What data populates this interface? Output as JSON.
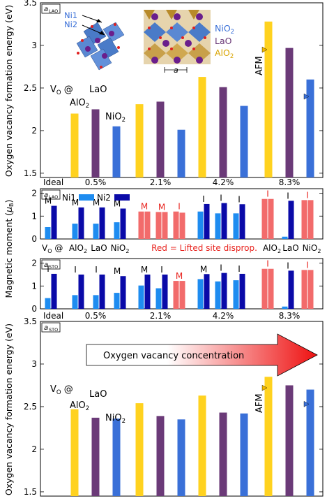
{
  "colors": {
    "AlO2": "#FFD21F",
    "LaO": "#6B3A78",
    "NiO2": "#3A70D8",
    "Ni1": "#1E8CF0",
    "Ni2": "#0A0AA8",
    "red": "#F26B6B",
    "red_text": "#E8231E",
    "AFM_marker": "#F2B800",
    "AFM_marker_ni": "#3A70D8"
  },
  "inset": {
    "ni1": "Ni1",
    "ni2": "Ni2",
    "nio2": "NiO2",
    "lao": "LaO",
    "alo2": "AlO2",
    "a": "a"
  },
  "strain_labels": [
    "Ideal",
    "0.5%",
    "2.1%",
    "4.2%",
    "8.3%"
  ],
  "mag_site_labels": [
    "VO @",
    "AlO2",
    "LaO",
    "NiO2",
    "Red = Lifted site disprop.",
    "AlO2",
    "LaO",
    "NiO2"
  ],
  "chart_data": [
    {
      "type": "bar",
      "panel_label": "aLAO",
      "ylabel": "Oxygen vacancy formation energy (eV)",
      "ylim": [
        1.45,
        3.5
      ],
      "yticks": [
        1.5,
        2,
        2.5,
        3,
        3.5
      ],
      "categories": [
        "0.5%",
        "2.1%",
        "4.2%",
        "8.3%"
      ],
      "series": [
        {
          "name": "AlO2",
          "values": [
            2.2,
            2.31,
            2.63,
            3.28
          ]
        },
        {
          "name": "LaO",
          "values": [
            2.25,
            2.34,
            2.51,
            2.97
          ]
        },
        {
          "name": "NiO2",
          "values": [
            2.05,
            2.01,
            2.29,
            2.6
          ]
        }
      ],
      "afm_markers": {
        "AlO2": 2.95,
        "NiO2": 2.4
      },
      "annotations": [
        "VO @",
        "LaO",
        "AlO2",
        "NiO2",
        "AFM"
      ]
    },
    {
      "type": "bar",
      "panel_label": "aLAO",
      "ylabel": "Magnetic moment (μB)",
      "ylim": [
        0,
        2.2
      ],
      "yticks": [
        0,
        1,
        2
      ],
      "legend": [
        "Ni1",
        "Ni2"
      ],
      "series": [
        {
          "name": "Ni1",
          "values": [
            0.52,
            0.67,
            0.67,
            0.73,
            1.2,
            1.18,
            1.2,
            1.2,
            1.12,
            1.12,
            1.75,
            0.1,
            1.7
          ]
        },
        {
          "name": "Ni2",
          "values": [
            1.45,
            1.38,
            1.38,
            1.33,
            1.2,
            1.18,
            1.15,
            1.53,
            1.57,
            1.52,
            1.75,
            1.67,
            1.7
          ]
        }
      ],
      "letters": [
        "M",
        "M",
        "M",
        "M",
        "M",
        "M",
        "I",
        "I",
        "I",
        "I",
        "I",
        "I",
        "I"
      ],
      "red_groups": [
        4,
        5,
        6,
        10,
        12
      ]
    },
    {
      "type": "bar",
      "panel_label": "aSTO",
      "ylabel": "Magnetic moment (μB)",
      "ylim": [
        0,
        2.2
      ],
      "yticks": [
        0,
        1,
        2
      ],
      "series": [
        {
          "name": "Ni1",
          "values": [
            0.47,
            0.6,
            0.6,
            0.7,
            1.02,
            0.9,
            1.22,
            1.3,
            1.2,
            1.25,
            1.75,
            0.1,
            1.7
          ]
        },
        {
          "name": "Ni2",
          "values": [
            1.53,
            1.5,
            1.5,
            1.43,
            1.5,
            1.5,
            1.22,
            1.52,
            1.57,
            1.53,
            1.75,
            1.67,
            1.7
          ]
        }
      ],
      "letters": [
        "I",
        "I",
        "I",
        "M",
        "M",
        "I",
        "M",
        "M",
        "I",
        "I",
        "I",
        "I",
        "I"
      ],
      "red_groups": [
        6,
        10,
        12
      ]
    },
    {
      "type": "bar",
      "panel_label": "aSTO",
      "ylabel": "Oxygen vacancy formation energy (eV)",
      "ylim": [
        1.45,
        3.5
      ],
      "yticks": [
        1.5,
        2,
        2.5,
        3,
        3.5
      ],
      "categories": [
        "0.5%",
        "2.1%",
        "4.2%",
        "8.3%"
      ],
      "series": [
        {
          "name": "AlO2",
          "values": [
            2.47,
            2.54,
            2.63,
            2.85
          ]
        },
        {
          "name": "LaO",
          "values": [
            2.37,
            2.39,
            2.43,
            2.75
          ]
        },
        {
          "name": "NiO2",
          "values": [
            2.36,
            2.35,
            2.42,
            2.7
          ]
        }
      ],
      "afm_markers": {
        "AlO2": 2.72,
        "NiO2": 2.53
      },
      "annotations": [
        "VO @",
        "LaO",
        "AlO2",
        "NiO2",
        "AFM"
      ],
      "arrow_label": "Oxygen vacancy concentration"
    }
  ]
}
